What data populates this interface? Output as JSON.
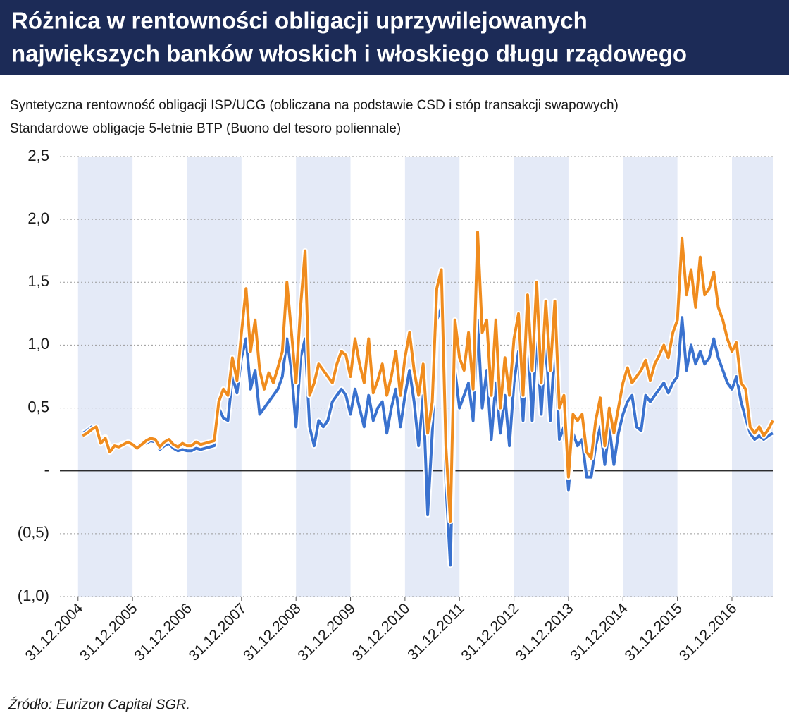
{
  "chart_data": {
    "type": "line",
    "title": [
      "Różnica w rentowności obligacji uprzywilejowanych",
      "największych banków włoskich i włoskiego długu rządowego"
    ],
    "source": "Źródło: Eurizon Capital SGR.",
    "x": [
      "01.2005",
      "02.2005",
      "03.2005",
      "04.2005",
      "05.2005",
      "06.2005",
      "07.2005",
      "08.2005",
      "09.2005",
      "10.2005",
      "11.2005",
      "12.2005",
      "01.2006",
      "02.2006",
      "03.2006",
      "04.2006",
      "05.2006",
      "06.2006",
      "07.2006",
      "08.2006",
      "09.2006",
      "10.2006",
      "11.2006",
      "12.2006",
      "01.2007",
      "02.2007",
      "03.2007",
      "04.2007",
      "05.2007",
      "06.2007",
      "07.2007",
      "08.2007",
      "09.2007",
      "10.2007",
      "11.2007",
      "12.2007",
      "01.2008",
      "02.2008",
      "03.2008",
      "04.2008",
      "05.2008",
      "06.2008",
      "07.2008",
      "08.2008",
      "09.2008",
      "10.2008",
      "11.2008",
      "12.2008",
      "01.2009",
      "02.2009",
      "03.2009",
      "04.2009",
      "05.2009",
      "06.2009",
      "07.2009",
      "08.2009",
      "09.2009",
      "10.2009",
      "11.2009",
      "12.2009",
      "01.2010",
      "02.2010",
      "03.2010",
      "04.2010",
      "05.2010",
      "06.2010",
      "07.2010",
      "08.2010",
      "09.2010",
      "10.2010",
      "11.2010",
      "12.2010",
      "01.2011",
      "02.2011",
      "03.2011",
      "04.2011",
      "05.2011",
      "06.2011",
      "07.2011",
      "08.2011",
      "09.2011",
      "10.2011",
      "11.2011",
      "12.2011",
      "01.2012",
      "02.2012",
      "03.2012",
      "04.2012",
      "05.2012",
      "06.2012",
      "07.2012",
      "08.2012",
      "09.2012",
      "10.2012",
      "11.2012",
      "12.2012",
      "01.2013",
      "02.2013",
      "03.2013",
      "04.2013",
      "05.2013",
      "06.2013",
      "07.2013",
      "08.2013",
      "09.2013",
      "10.2013",
      "11.2013",
      "12.2013",
      "01.2014",
      "02.2014",
      "03.2014",
      "04.2014",
      "05.2014",
      "06.2014",
      "07.2014",
      "08.2014",
      "09.2014",
      "10.2014",
      "11.2014",
      "12.2014",
      "01.2015",
      "02.2015",
      "03.2015",
      "04.2015",
      "05.2015",
      "06.2015",
      "07.2015",
      "08.2015",
      "09.2015",
      "10.2015",
      "11.2015",
      "12.2015",
      "01.2016",
      "02.2016",
      "03.2016",
      "04.2016",
      "05.2016",
      "06.2016",
      "07.2016",
      "08.2016",
      "09.2016",
      "10.2016",
      "11.2016",
      "12.2016",
      "01.2017",
      "02.2017",
      "03.2017",
      "04.2017",
      "05.2017",
      "06.2017",
      "07.2017",
      "08.2017",
      "09.2017"
    ],
    "series": [
      {
        "name": "Syntetyczna rentowność obligacji ISP/UCG (obliczana na podstawie CSD i stóp transakcji swapowych)",
        "color": "#f08c1e",
        "values": [
          0.28,
          0.3,
          0.33,
          0.35,
          0.22,
          0.26,
          0.15,
          0.2,
          0.19,
          0.21,
          0.23,
          0.21,
          0.18,
          0.21,
          0.24,
          0.26,
          0.25,
          0.19,
          0.23,
          0.25,
          0.21,
          0.19,
          0.22,
          0.2,
          0.2,
          0.23,
          0.21,
          0.22,
          0.23,
          0.24,
          0.55,
          0.65,
          0.6,
          0.9,
          0.72,
          1.1,
          1.45,
          0.95,
          1.2,
          0.8,
          0.65,
          0.78,
          0.7,
          0.82,
          0.95,
          1.5,
          1.1,
          0.7,
          1.3,
          1.75,
          0.6,
          0.7,
          0.85,
          0.8,
          0.75,
          0.7,
          0.85,
          0.95,
          0.92,
          0.75,
          1.05,
          0.85,
          0.7,
          1.05,
          0.62,
          0.72,
          0.85,
          0.6,
          0.75,
          0.95,
          0.6,
          0.9,
          1.1,
          0.8,
          0.6,
          0.85,
          0.3,
          0.55,
          1.45,
          1.6,
          0.2,
          -0.4,
          1.2,
          0.9,
          0.8,
          1.1,
          0.65,
          1.9,
          1.1,
          1.2,
          0.6,
          1.2,
          0.5,
          0.9,
          0.6,
          1.05,
          1.25,
          0.6,
          1.4,
          0.8,
          1.5,
          0.7,
          1.35,
          0.8,
          1.35,
          0.5,
          0.6,
          -0.05,
          0.45,
          0.4,
          0.45,
          0.15,
          0.1,
          0.4,
          0.58,
          0.2,
          0.5,
          0.3,
          0.5,
          0.7,
          0.82,
          0.7,
          0.75,
          0.8,
          0.88,
          0.72,
          0.85,
          0.92,
          1.0,
          0.9,
          1.1,
          1.2,
          1.85,
          1.4,
          1.6,
          1.3,
          1.7,
          1.4,
          1.45,
          1.58,
          1.3,
          1.2,
          1.05,
          0.95,
          1.02,
          0.7,
          0.65,
          0.35,
          0.3,
          0.35,
          0.28,
          0.33,
          0.4
        ]
      },
      {
        "name": "Standardowe obligacje 5-letnie BTP (Buono del tesoro poliennale)",
        "color": "#3a72cf",
        "values": [
          0.3,
          0.32,
          0.35,
          0.33,
          0.25,
          0.27,
          0.18,
          0.2,
          0.2,
          0.22,
          0.22,
          0.2,
          0.2,
          0.22,
          0.22,
          0.24,
          0.23,
          0.17,
          0.2,
          0.22,
          0.18,
          0.16,
          0.17,
          0.16,
          0.16,
          0.18,
          0.17,
          0.18,
          0.19,
          0.2,
          0.5,
          0.42,
          0.4,
          0.75,
          0.62,
          0.9,
          1.05,
          0.65,
          0.8,
          0.45,
          0.5,
          0.55,
          0.6,
          0.65,
          0.75,
          1.05,
          0.8,
          0.35,
          0.9,
          1.05,
          0.35,
          0.2,
          0.4,
          0.35,
          0.4,
          0.55,
          0.6,
          0.65,
          0.6,
          0.45,
          0.65,
          0.5,
          0.35,
          0.6,
          0.4,
          0.5,
          0.55,
          0.3,
          0.5,
          0.65,
          0.35,
          0.6,
          0.8,
          0.55,
          0.2,
          0.6,
          -0.35,
          0.3,
          1.2,
          1.3,
          -0.1,
          -0.75,
          0.8,
          0.5,
          0.6,
          0.7,
          0.4,
          1.2,
          0.5,
          0.8,
          0.25,
          0.7,
          0.3,
          0.6,
          0.2,
          0.7,
          0.95,
          0.4,
          1.1,
          0.4,
          1.1,
          0.45,
          1.05,
          0.4,
          1.0,
          0.25,
          0.35,
          -0.15,
          0.3,
          0.2,
          0.25,
          -0.05,
          -0.05,
          0.2,
          0.35,
          0.05,
          0.35,
          0.05,
          0.3,
          0.45,
          0.55,
          0.6,
          0.35,
          0.32,
          0.6,
          0.55,
          0.6,
          0.65,
          0.7,
          0.62,
          0.7,
          0.75,
          1.22,
          0.8,
          1.0,
          0.85,
          0.95,
          0.85,
          0.9,
          1.05,
          0.9,
          0.8,
          0.7,
          0.65,
          0.75,
          0.55,
          0.42,
          0.3,
          0.25,
          0.28,
          0.25,
          0.28,
          0.3
        ]
      }
    ],
    "xlim": [
      "08.2004",
      "09.2017"
    ],
    "xticks": [
      "31.12.2004",
      "31.12.2005",
      "31.12.2006",
      "31.12.2007",
      "31.12.2008",
      "31.12.2009",
      "31.12.2010",
      "31.12.2011",
      "31.12.2012",
      "31.12.2013",
      "31.12.2014",
      "31.12.2015",
      "31.12.2016"
    ],
    "ylim": [
      -1,
      2.5
    ],
    "yticks": [
      {
        "value": -1,
        "label": "(1,0)"
      },
      {
        "value": -0.5,
        "label": "(0,5)"
      },
      {
        "value": 0,
        "label": "-"
      },
      {
        "value": 0.5,
        "label": "0,5"
      },
      {
        "value": 1,
        "label": "1,0"
      },
      {
        "value": 1.5,
        "label": "1,5"
      },
      {
        "value": 2,
        "label": "2,0"
      },
      {
        "value": 2.5,
        "label": "2,5"
      }
    ],
    "grid": true
  }
}
